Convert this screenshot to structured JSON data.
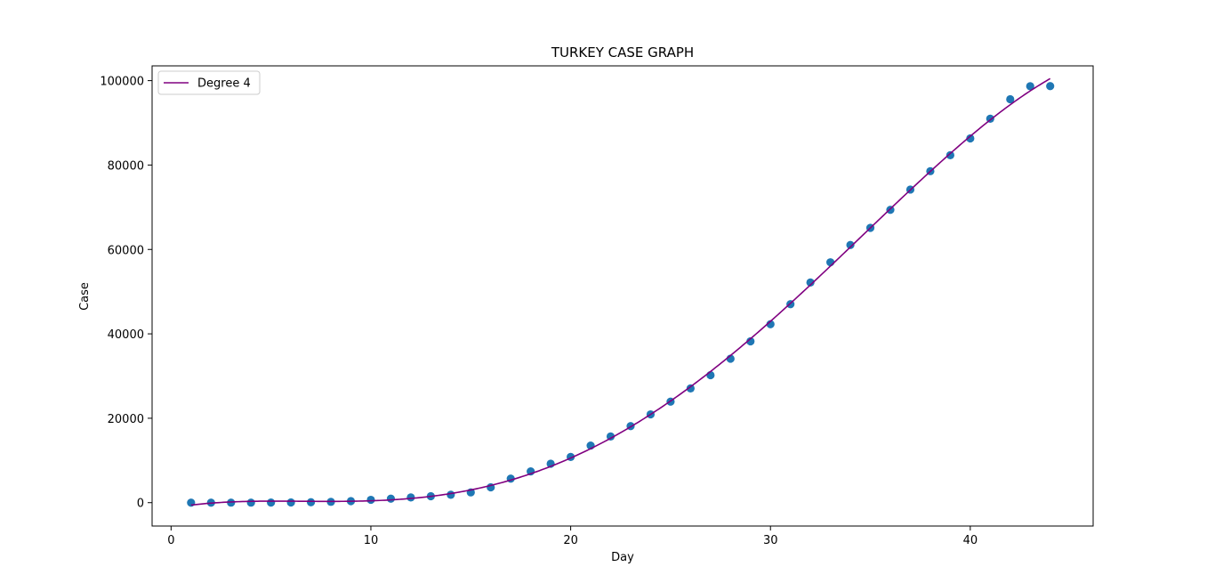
{
  "chart_data": {
    "type": "scatter",
    "title": "TURKEY CASE GRAPH",
    "xlabel": "Day",
    "ylabel": "Case",
    "xlim": [
      -0.95,
      46.15
    ],
    "ylim": [
      -5540,
      103500
    ],
    "xticks": [
      0,
      10,
      20,
      30,
      40
    ],
    "yticks": [
      0,
      20000,
      40000,
      60000,
      80000,
      100000
    ],
    "grid": false,
    "legend": {
      "placement": "upper left",
      "entries": [
        "Degree 4"
      ]
    },
    "series": [
      {
        "kind": "scatter",
        "color": "#1f77b4",
        "x": [
          1,
          2,
          3,
          4,
          5,
          6,
          7,
          8,
          9,
          10,
          11,
          12,
          13,
          14,
          15,
          16,
          17,
          18,
          19,
          20,
          21,
          22,
          23,
          24,
          25,
          26,
          27,
          28,
          29,
          30,
          31,
          32,
          33,
          34,
          35,
          36,
          37,
          38,
          39,
          40,
          41,
          42,
          43,
          44
        ],
        "y": [
          1,
          1,
          5,
          6,
          18,
          47,
          98,
          191,
          359,
          670,
          947,
          1236,
          1529,
          1872,
          2433,
          3629,
          5698,
          7402,
          9217,
          10827,
          13531,
          15679,
          18135,
          20921,
          23934,
          27069,
          30217,
          34109,
          38226,
          42282,
          47029,
          52167,
          56956,
          61049,
          65111,
          69392,
          74193,
          78546,
          82329,
          86306,
          90980,
          95591,
          98674,
          98700
        ]
      },
      {
        "kind": "line",
        "name": "Degree 4",
        "color": "#800080",
        "degree": 4,
        "fit_x_range": [
          1,
          44
        ]
      }
    ]
  }
}
